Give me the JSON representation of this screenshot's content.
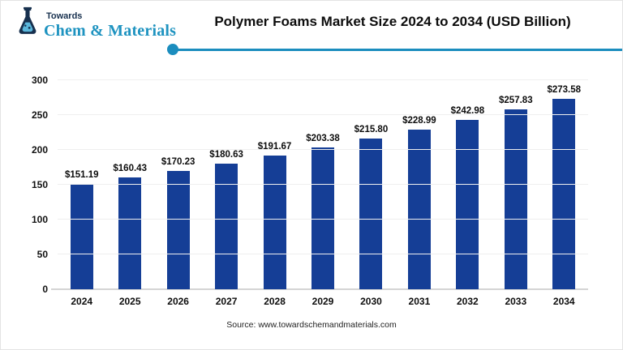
{
  "header": {
    "logo": {
      "top_text": "Towards",
      "bottom_text": "Chem & Materials"
    },
    "title": "Polymer Foams Market Size 2024 to 2034 (USD Billion)"
  },
  "chart_data": {
    "type": "bar",
    "title": "Polymer Foams Market Size 2024 to 2034 (USD Billion)",
    "categories": [
      "2024",
      "2025",
      "2026",
      "2027",
      "2028",
      "2029",
      "2030",
      "2031",
      "2032",
      "2033",
      "2034"
    ],
    "values": [
      151.19,
      160.43,
      170.23,
      180.63,
      191.67,
      203.38,
      215.8,
      228.99,
      242.98,
      257.83,
      273.58
    ],
    "value_labels": [
      "$151.19",
      "$160.43",
      "$170.23",
      "$180.63",
      "$191.67",
      "$203.38",
      "$215.80",
      "$228.99",
      "$242.98",
      "$257.83",
      "$273.58"
    ],
    "xlabel": "",
    "ylabel": "",
    "ylim": [
      0,
      300
    ],
    "yticks": [
      0,
      50,
      100,
      150,
      200,
      250,
      300
    ],
    "grid": true,
    "legend": false,
    "bar_color": "#153e96"
  },
  "footer": {
    "source": "Source: www.towardschemandmaterials.com"
  },
  "colors": {
    "bar": "#153e96",
    "accent_line": "#1b8dbe",
    "logo_teal": "#1e93c0",
    "logo_navy": "#17304e",
    "gridline": "#efefef",
    "baseline": "#d4d4d4"
  }
}
